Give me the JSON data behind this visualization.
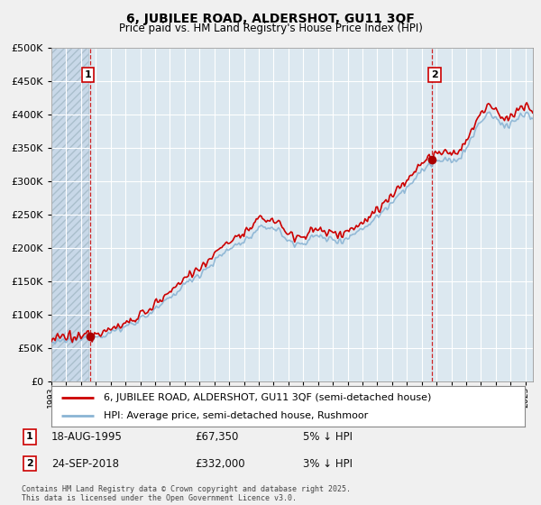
{
  "title": "6, JUBILEE ROAD, ALDERSHOT, GU11 3QF",
  "subtitle": "Price paid vs. HM Land Registry's House Price Index (HPI)",
  "legend_line1": "6, JUBILEE ROAD, ALDERSHOT, GU11 3QF (semi-detached house)",
  "legend_line2": "HPI: Average price, semi-detached house, Rushmoor",
  "purchase1_label": "1",
  "purchase1_date": "18-AUG-1995",
  "purchase1_price": "£67,350",
  "purchase1_hpi": "5% ↓ HPI",
  "purchase1_year": 1995.62,
  "purchase1_value": 67350,
  "purchase2_label": "2",
  "purchase2_date": "24-SEP-2018",
  "purchase2_price": "£332,000",
  "purchase2_hpi": "3% ↓ HPI",
  "purchase2_year": 2018.71,
  "purchase2_value": 332000,
  "note": "Contains HM Land Registry data © Crown copyright and database right 2025.\nThis data is licensed under the Open Government Licence v3.0.",
  "hpi_color": "#8ab4d4",
  "price_color": "#cc0000",
  "marker_color": "#aa0000",
  "bg_color": "#f0f0f0",
  "plot_bg_color": "#dce8f0",
  "hatch_color": "#c8d8e8",
  "grid_color": "#ffffff",
  "ylim": [
    0,
    500000
  ],
  "yticks": [
    0,
    50000,
    100000,
    150000,
    200000,
    250000,
    300000,
    350000,
    400000,
    450000,
    500000
  ],
  "xlim_start": 1993,
  "xlim_end": 2025.5
}
